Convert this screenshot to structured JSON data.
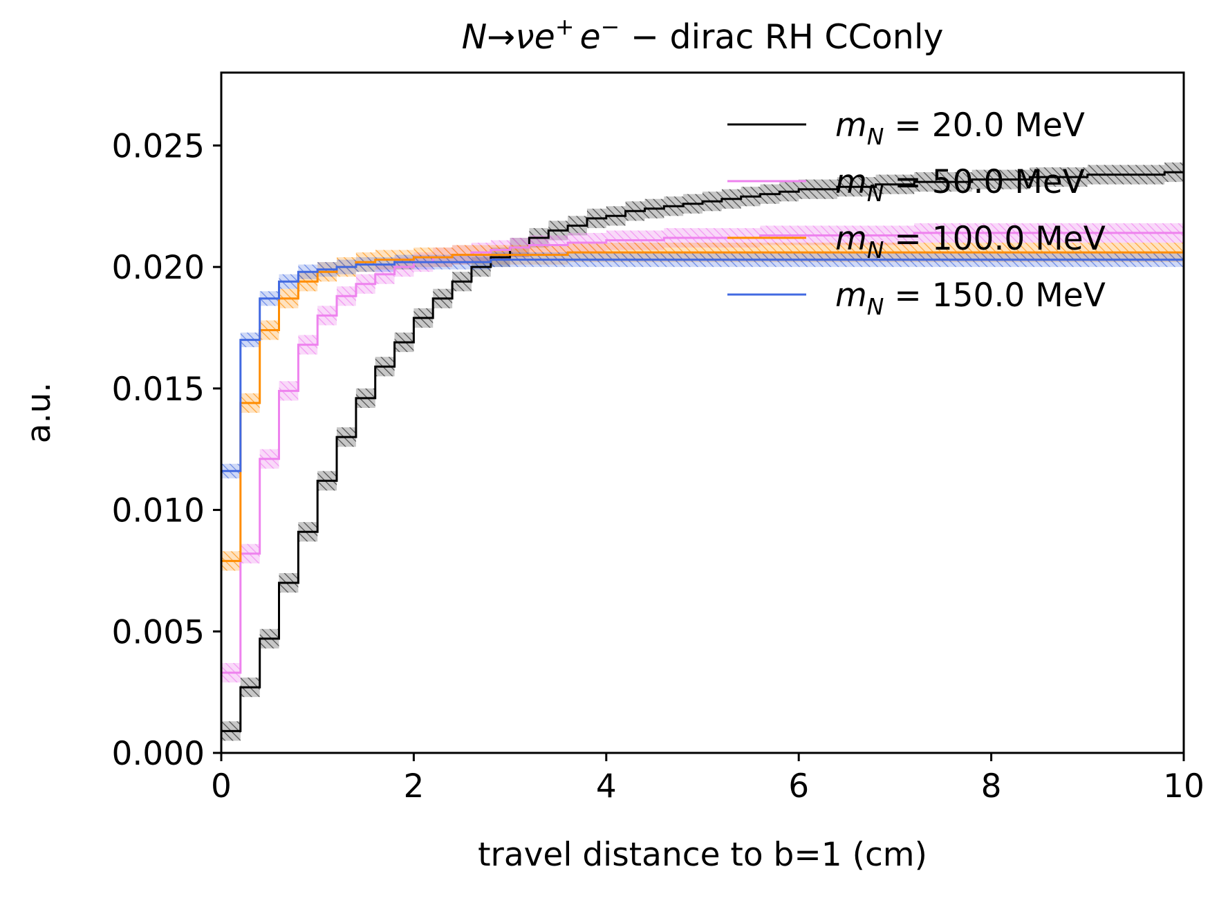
{
  "chart_data": {
    "type": "line",
    "style": "step-histogram-with-error-bands",
    "title_parts": {
      "N": "N",
      "arrow": "→",
      "nu": "ν",
      "e1": "e",
      "plus": "+",
      "e2": "e",
      "minus": "−",
      "rest": " − dirac RH CConly"
    },
    "xlabel": "travel distance to b=1 (cm)",
    "ylabel": "a.u.",
    "xlim": [
      0,
      10
    ],
    "ylim": [
      0,
      0.028
    ],
    "xticks": [
      "0",
      "2",
      "4",
      "6",
      "8",
      "10"
    ],
    "yticks": [
      "0.000",
      "0.005",
      "0.010",
      "0.015",
      "0.020",
      "0.025"
    ],
    "grid": false,
    "legend_position": "upper right",
    "bin_width": 0.2,
    "x": [
      0.0,
      0.2,
      0.4,
      0.6,
      0.8,
      1.0,
      1.2,
      1.4,
      1.6,
      1.8,
      2.0,
      2.2,
      2.4,
      2.6,
      2.8,
      3.0,
      3.2,
      3.4,
      3.6,
      3.8,
      4.0,
      4.2,
      4.4,
      4.6,
      4.8,
      5.0,
      5.2,
      5.4,
      5.6,
      5.8,
      6.0,
      6.2,
      6.4,
      6.6,
      6.8,
      7.0,
      7.2,
      7.4,
      7.6,
      7.8,
      8.0,
      8.2,
      8.4,
      8.6,
      8.8,
      9.0,
      9.2,
      9.4,
      9.6,
      9.8
    ],
    "series": [
      {
        "name": "m_N = 20.0 MeV",
        "legend": {
          "m": "m",
          "sub": "N",
          "eq": " = 20.0 MeV"
        },
        "color": "#000000",
        "values": [
          0.0009,
          0.0027,
          0.0047,
          0.007,
          0.0091,
          0.0112,
          0.013,
          0.0146,
          0.0159,
          0.0169,
          0.0179,
          0.0187,
          0.0194,
          0.02,
          0.0204,
          0.0208,
          0.0212,
          0.0215,
          0.0217,
          0.022,
          0.0221,
          0.0223,
          0.0224,
          0.0225,
          0.0226,
          0.0227,
          0.0228,
          0.0229,
          0.023,
          0.0231,
          0.0232,
          0.0232,
          0.0233,
          0.0233,
          0.0234,
          0.0234,
          0.0235,
          0.0235,
          0.0235,
          0.0236,
          0.0236,
          0.0236,
          0.0237,
          0.0237,
          0.0237,
          0.0238,
          0.0238,
          0.0238,
          0.0238,
          0.0239
        ],
        "band_halfwidth": 0.0004
      },
      {
        "name": "m_N = 50.0 MeV",
        "legend": {
          "m": "m",
          "sub": "N",
          "eq": " = 50.0 MeV"
        },
        "color": "#ee82ee",
        "values": [
          0.0033,
          0.0082,
          0.0121,
          0.0149,
          0.0168,
          0.018,
          0.0188,
          0.0193,
          0.0197,
          0.02,
          0.0202,
          0.0204,
          0.0205,
          0.0206,
          0.0207,
          0.0208,
          0.0209,
          0.0209,
          0.021,
          0.021,
          0.0211,
          0.0211,
          0.0211,
          0.0212,
          0.0212,
          0.0212,
          0.0212,
          0.0212,
          0.0213,
          0.0213,
          0.0213,
          0.0213,
          0.0213,
          0.0213,
          0.0213,
          0.0213,
          0.0214,
          0.0214,
          0.0214,
          0.0214,
          0.0214,
          0.0214,
          0.0214,
          0.0214,
          0.0214,
          0.0214,
          0.0214,
          0.0214,
          0.0214,
          0.0214
        ],
        "band_halfwidth": 0.0004
      },
      {
        "name": "m_N = 100.0 MeV",
        "legend": {
          "m": "m",
          "sub": "N",
          "eq": " = 100.0 MeV"
        },
        "color": "#ff8c00",
        "values": [
          0.0079,
          0.0144,
          0.0174,
          0.0187,
          0.0194,
          0.0198,
          0.02,
          0.0202,
          0.0203,
          0.0203,
          0.0204,
          0.0204,
          0.0205,
          0.0205,
          0.0205,
          0.0205,
          0.0205,
          0.0205,
          0.0206,
          0.0206,
          0.0206,
          0.0206,
          0.0206,
          0.0206,
          0.0206,
          0.0206,
          0.0206,
          0.0206,
          0.0206,
          0.0206,
          0.0206,
          0.0206,
          0.0206,
          0.0206,
          0.0206,
          0.0206,
          0.0206,
          0.0206,
          0.0206,
          0.0206,
          0.0206,
          0.0206,
          0.0206,
          0.0206,
          0.0206,
          0.0206,
          0.0206,
          0.0206,
          0.0206,
          0.0206
        ],
        "band_halfwidth": 0.0004
      },
      {
        "name": "m_N = 150.0 MeV",
        "legend": {
          "m": "m",
          "sub": "N",
          "eq": " = 150.0 MeV"
        },
        "color": "#4169e1",
        "values": [
          0.0116,
          0.017,
          0.0187,
          0.0194,
          0.0198,
          0.0199,
          0.02,
          0.0201,
          0.0201,
          0.0202,
          0.0202,
          0.0202,
          0.0202,
          0.0202,
          0.0203,
          0.0203,
          0.0203,
          0.0203,
          0.0203,
          0.0203,
          0.0203,
          0.0203,
          0.0203,
          0.0203,
          0.0203,
          0.0203,
          0.0203,
          0.0203,
          0.0203,
          0.0203,
          0.0203,
          0.0203,
          0.0203,
          0.0203,
          0.0203,
          0.0203,
          0.0203,
          0.0203,
          0.0203,
          0.0203,
          0.0203,
          0.0203,
          0.0203,
          0.0203,
          0.0203,
          0.0203,
          0.0203,
          0.0203,
          0.0203,
          0.0203
        ],
        "band_halfwidth": 0.0003
      }
    ]
  }
}
